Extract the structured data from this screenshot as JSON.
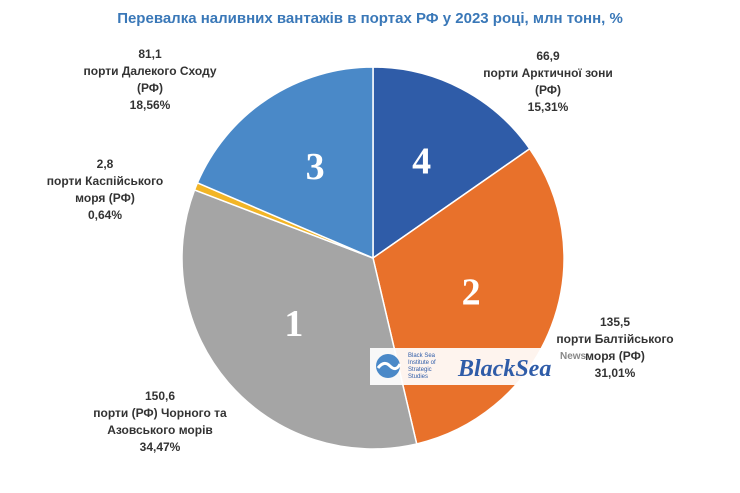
{
  "chart_data": {
    "type": "pie",
    "title": "Перевалка наливних вантажів в портах РФ у 2023 році, млн тонн, %",
    "categories": [
      "порти Арктичної зони (РФ)",
      "порти Балтійського моря (РФ)",
      "порти (РФ) Чорного та Азовського морів",
      "порти Каспійського моря (РФ)",
      "порти Далекого Сходу (РФ)"
    ],
    "values": [
      66.9,
      135.5,
      150.6,
      2.8,
      81.1
    ],
    "value_labels": [
      "66,9",
      "135,5",
      "150,6",
      "2,8",
      "81,1"
    ],
    "percents": [
      15.31,
      31.01,
      34.47,
      0.64,
      18.56
    ],
    "percent_labels": [
      "15,31%",
      "31,01%",
      "34,47%",
      "0,64%",
      "18,56%"
    ],
    "slice_numbers": [
      4,
      2,
      1,
      null,
      3
    ],
    "colors": [
      "#2f5ca8",
      "#e8712b",
      "#a5a5a5",
      "#f2b526",
      "#4a89c8"
    ]
  },
  "watermark": {
    "institute": "Black Sea Institute of Strategic Studies",
    "brand": "BlackSea",
    "brand_sup": "News"
  }
}
